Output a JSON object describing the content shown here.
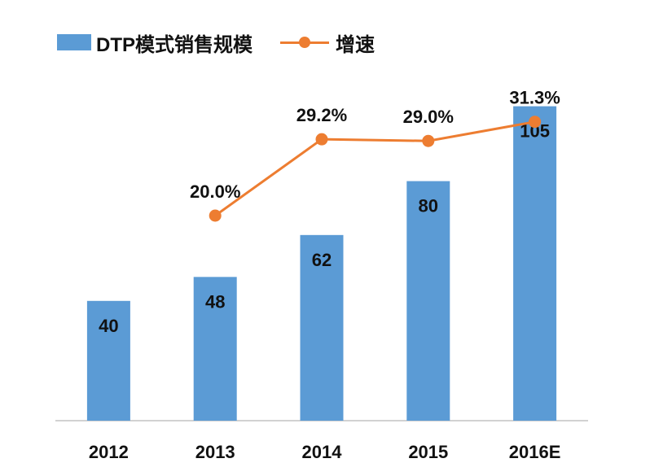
{
  "chart_data": {
    "type": "bar+line",
    "categories": [
      "2012",
      "2013",
      "2014",
      "2015",
      "2016E"
    ],
    "series": [
      {
        "name": "DTP模式销售规模",
        "type": "bar",
        "values": [
          40,
          48,
          62,
          80,
          105
        ],
        "labels": [
          "40",
          "48",
          "62",
          "80",
          "105"
        ],
        "color": "#5b9bd5"
      },
      {
        "name": "增速",
        "type": "line",
        "values": [
          null,
          20.0,
          29.2,
          29.0,
          31.3
        ],
        "labels": [
          "",
          "20.0%",
          "29.2%",
          "29.0%",
          "31.3%"
        ],
        "color": "#ed7d31"
      }
    ],
    "legend": "top-left",
    "grid": false
  }
}
